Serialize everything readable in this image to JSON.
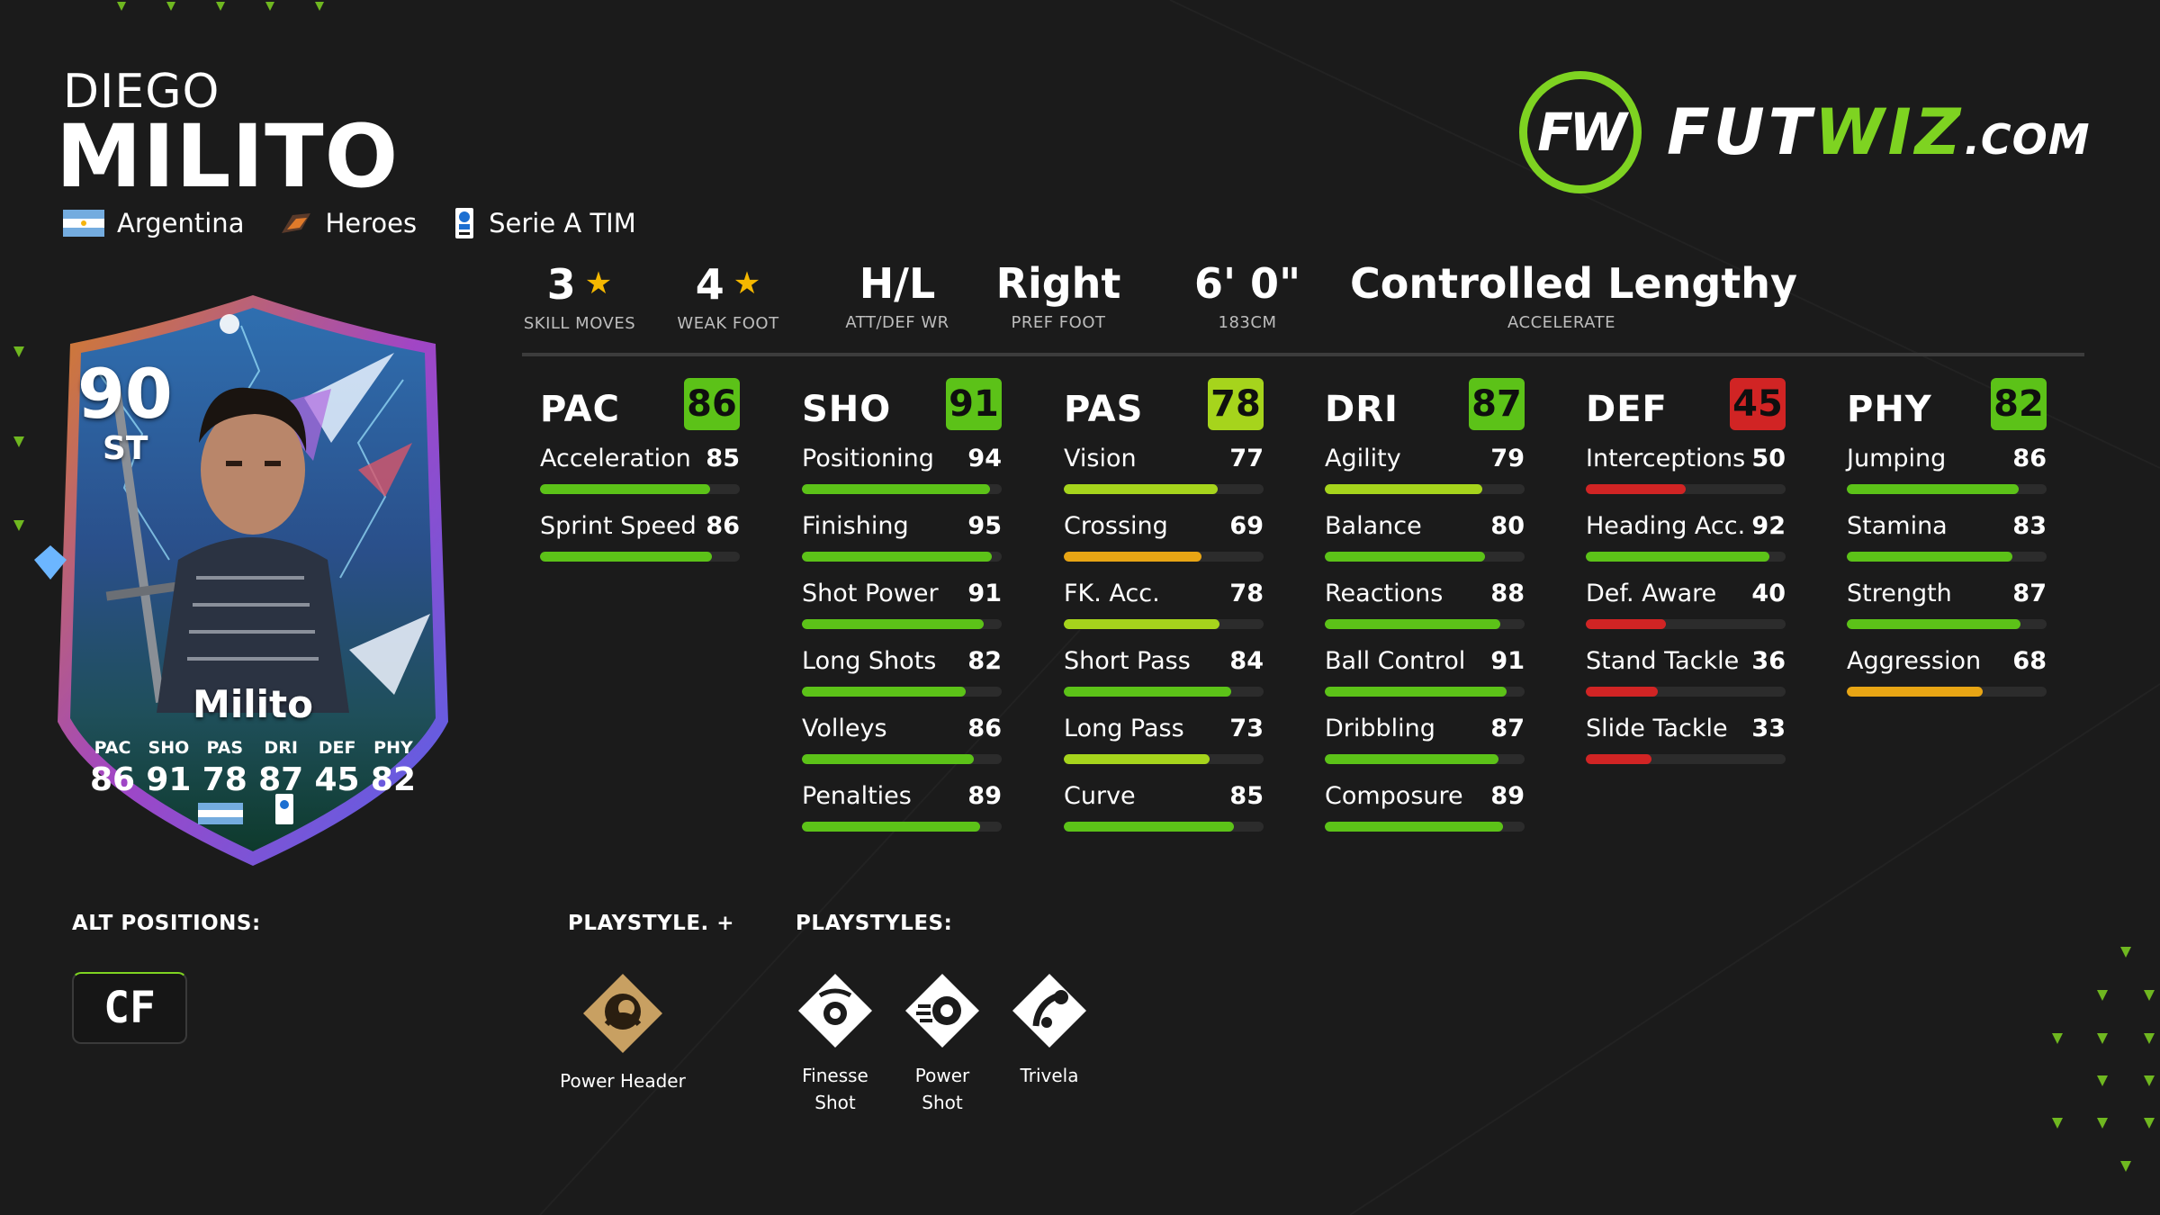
{
  "player": {
    "first_name": "DIEGO",
    "last_name": "MILITO",
    "nation": "Argentina",
    "club": "Heroes",
    "league": "Serie A TIM"
  },
  "logo": {
    "mark": "FW",
    "text_part1": "FUT",
    "text_part2": "WIZ",
    "text_part3": ".COM"
  },
  "info": [
    {
      "value": "3",
      "label": "SKILL MOVES",
      "icon": "star-icon"
    },
    {
      "value": "4",
      "label": "WEAK FOOT",
      "icon": "star-icon"
    },
    {
      "value": "H/L",
      "label": "ATT/DEF WR"
    },
    {
      "value": "Right",
      "label": "PREF FOOT"
    },
    {
      "value": "6' 0\"",
      "label": "183CM"
    },
    {
      "value": "Controlled Lengthy",
      "label": "ACCELERATE"
    }
  ],
  "colors": {
    "high": "#5cc218",
    "mid": "#a6d41c",
    "low": "#e8a514",
    "poor": "#d12424",
    "brand": "#7ed321",
    "star": "#f5b800"
  },
  "categories": [
    {
      "name": "PAC",
      "value": 86,
      "tier": "high",
      "stats": [
        {
          "name": "Acceleration",
          "value": 85,
          "tier": "high"
        },
        {
          "name": "Sprint Speed",
          "value": 86,
          "tier": "high"
        }
      ]
    },
    {
      "name": "SHO",
      "value": 91,
      "tier": "high",
      "stats": [
        {
          "name": "Positioning",
          "value": 94,
          "tier": "high"
        },
        {
          "name": "Finishing",
          "value": 95,
          "tier": "high"
        },
        {
          "name": "Shot Power",
          "value": 91,
          "tier": "high"
        },
        {
          "name": "Long Shots",
          "value": 82,
          "tier": "high"
        },
        {
          "name": "Volleys",
          "value": 86,
          "tier": "high"
        },
        {
          "name": "Penalties",
          "value": 89,
          "tier": "high"
        }
      ]
    },
    {
      "name": "PAS",
      "value": 78,
      "tier": "mid",
      "stats": [
        {
          "name": "Vision",
          "value": 77,
          "tier": "mid"
        },
        {
          "name": "Crossing",
          "value": 69,
          "tier": "low"
        },
        {
          "name": "FK. Acc.",
          "value": 78,
          "tier": "mid"
        },
        {
          "name": "Short Pass",
          "value": 84,
          "tier": "high"
        },
        {
          "name": "Long Pass",
          "value": 73,
          "tier": "mid"
        },
        {
          "name": "Curve",
          "value": 85,
          "tier": "high"
        }
      ]
    },
    {
      "name": "DRI",
      "value": 87,
      "tier": "high",
      "stats": [
        {
          "name": "Agility",
          "value": 79,
          "tier": "mid"
        },
        {
          "name": "Balance",
          "value": 80,
          "tier": "high"
        },
        {
          "name": "Reactions",
          "value": 88,
          "tier": "high"
        },
        {
          "name": "Ball Control",
          "value": 91,
          "tier": "high"
        },
        {
          "name": "Dribbling",
          "value": 87,
          "tier": "high"
        },
        {
          "name": "Composure",
          "value": 89,
          "tier": "high"
        }
      ]
    },
    {
      "name": "DEF",
      "value": 45,
      "tier": "poor",
      "stats": [
        {
          "name": "Interceptions",
          "value": 50,
          "tier": "poor"
        },
        {
          "name": "Heading Acc.",
          "value": 92,
          "tier": "high"
        },
        {
          "name": "Def. Aware",
          "value": 40,
          "tier": "poor"
        },
        {
          "name": "Stand Tackle",
          "value": 36,
          "tier": "poor"
        },
        {
          "name": "Slide Tackle",
          "value": 33,
          "tier": "poor"
        }
      ]
    },
    {
      "name": "PHY",
      "value": 82,
      "tier": "high",
      "stats": [
        {
          "name": "Jumping",
          "value": 86,
          "tier": "high"
        },
        {
          "name": "Stamina",
          "value": 83,
          "tier": "high"
        },
        {
          "name": "Strength",
          "value": 87,
          "tier": "high"
        },
        {
          "name": "Aggression",
          "value": 68,
          "tier": "low"
        }
      ]
    }
  ],
  "card": {
    "rating": "90",
    "position": "ST",
    "name": "Milito",
    "stats": [
      {
        "label": "PAC",
        "value": "86"
      },
      {
        "label": "SHO",
        "value": "91"
      },
      {
        "label": "PAS",
        "value": "78"
      },
      {
        "label": "DRI",
        "value": "87"
      },
      {
        "label": "DEF",
        "value": "45"
      },
      {
        "label": "PHY",
        "value": "82"
      }
    ]
  },
  "bottom": {
    "alt_positions_title": "ALT POSITIONS:",
    "alt_positions": [
      "CF"
    ],
    "playstyle_plus_title": "PLAYSTYLE. +",
    "playstyle_plus": [
      {
        "name": "Power Header",
        "lines": [
          "Power Header"
        ],
        "icon": "power-header-icon"
      }
    ],
    "playstyles_title": "PLAYSTYLES:",
    "playstyles": [
      {
        "name": "Finesse Shot",
        "lines": [
          "Finesse",
          "Shot"
        ],
        "icon": "finesse-shot-icon"
      },
      {
        "name": "Power Shot",
        "lines": [
          "Power",
          "Shot"
        ],
        "icon": "power-shot-icon"
      },
      {
        "name": "Trivela",
        "lines": [
          "Trivela"
        ],
        "icon": "trivela-icon"
      }
    ]
  }
}
